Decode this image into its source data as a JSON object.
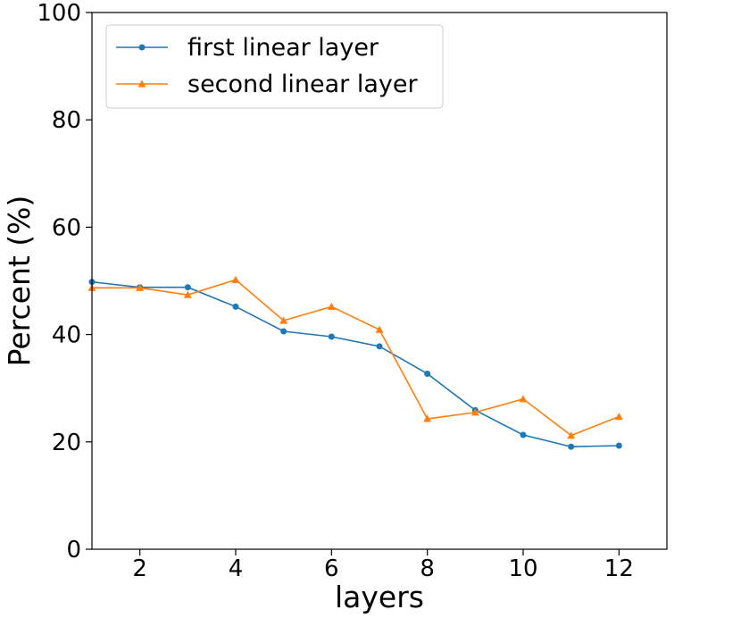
{
  "chart_data": {
    "type": "line",
    "title": "",
    "xlabel": "layers",
    "ylabel": "Percent (%)",
    "xlim": [
      1,
      13
    ],
    "ylim": [
      0,
      100
    ],
    "xticks": [
      2,
      4,
      6,
      8,
      10,
      12
    ],
    "yticks": [
      0,
      20,
      40,
      60,
      80,
      100
    ],
    "x": [
      1,
      2,
      3,
      4,
      5,
      6,
      7,
      8,
      9,
      10,
      11,
      12
    ],
    "grid": false,
    "legend_position": "top-left",
    "series": [
      {
        "name": "first linear layer",
        "color": "#1f77b4",
        "marker": "circle",
        "values": [
          49.8,
          48.8,
          48.8,
          45.2,
          40.6,
          39.6,
          37.8,
          32.7,
          25.9,
          21.3,
          19.1,
          19.3
        ]
      },
      {
        "name": "second linear layer",
        "color": "#ff7f0e",
        "marker": "triangle",
        "values": [
          48.7,
          48.7,
          47.4,
          50.2,
          42.6,
          45.2,
          40.9,
          24.3,
          25.5,
          28.0,
          21.2,
          24.7
        ]
      }
    ]
  }
}
